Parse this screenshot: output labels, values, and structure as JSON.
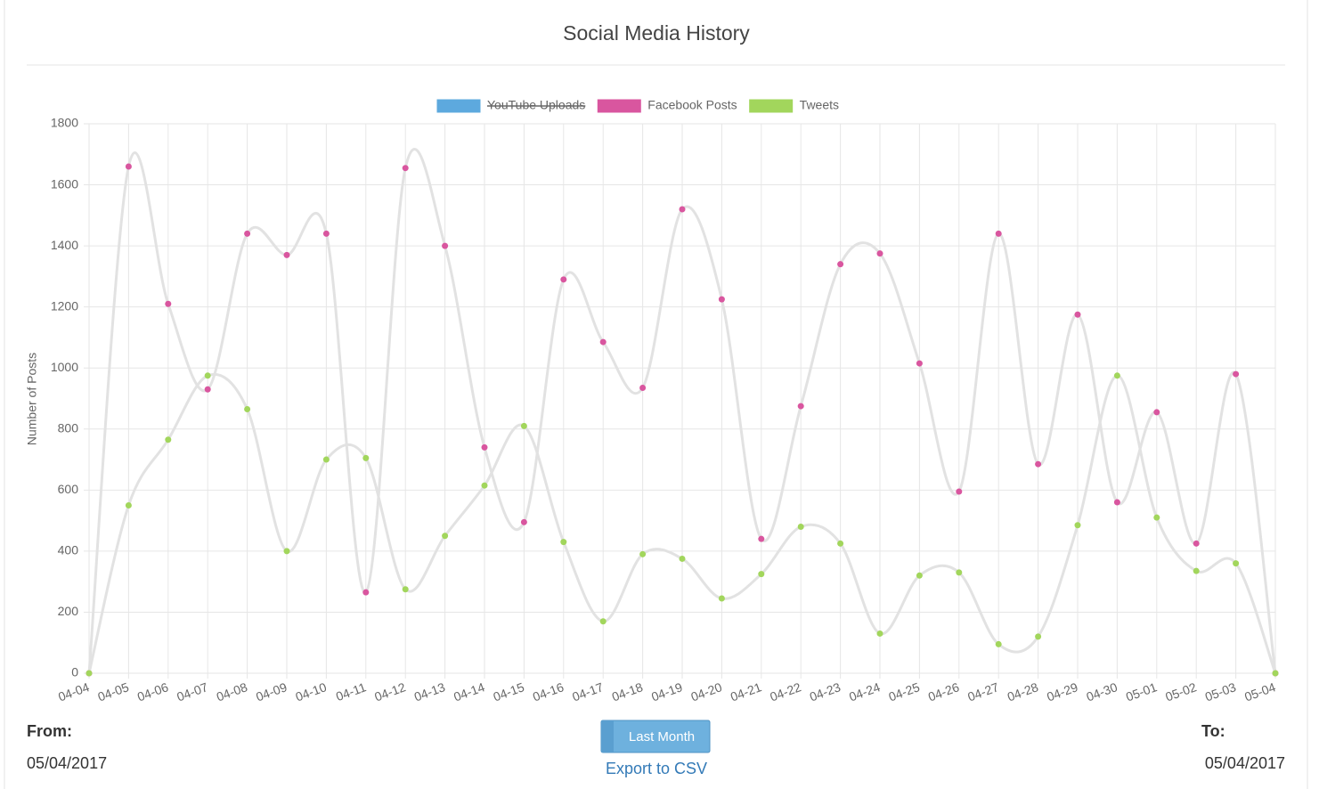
{
  "chart_data": {
    "type": "line",
    "title": "Social Media History",
    "y_label": "Number of Posts",
    "categories": [
      "04-04",
      "04-05",
      "04-06",
      "04-07",
      "04-08",
      "04-09",
      "04-10",
      "04-11",
      "04-12",
      "04-13",
      "04-14",
      "04-15",
      "04-16",
      "04-17",
      "04-18",
      "04-19",
      "04-20",
      "04-21",
      "04-22",
      "04-23",
      "04-24",
      "04-25",
      "04-26",
      "04-27",
      "04-28",
      "04-29",
      "04-30",
      "05-01",
      "05-02",
      "05-03",
      "05-04"
    ],
    "series": [
      {
        "name": "YouTube Uploads",
        "color": "#5da9de",
        "hidden": true
      },
      {
        "name": "Facebook Posts",
        "color": "#d9569f",
        "values": [
          0,
          1660,
          1210,
          930,
          1440,
          1370,
          1440,
          265,
          1655,
          1400,
          740,
          495,
          1290,
          1085,
          935,
          1520,
          1225,
          440,
          875,
          1340,
          1375,
          1015,
          595,
          1440,
          685,
          1175,
          560,
          855,
          425,
          980,
          0
        ]
      },
      {
        "name": "Tweets",
        "color": "#a2d65c",
        "values": [
          0,
          550,
          765,
          975,
          865,
          400,
          700,
          705,
          275,
          450,
          615,
          810,
          430,
          170,
          390,
          375,
          245,
          325,
          480,
          425,
          130,
          320,
          330,
          95,
          120,
          485,
          975,
          510,
          335,
          360,
          0
        ]
      }
    ],
    "line_color": "#e2e2e2",
    "smooth": true,
    "ylim": [
      0,
      1800
    ],
    "yticks": [
      0,
      200,
      400,
      600,
      800,
      1000,
      1200,
      1400,
      1600,
      1800
    ],
    "grid": true,
    "legend": "top"
  },
  "controls": {
    "from_label": "From:",
    "from_date": "05/04/2017",
    "button": "Last Month",
    "export": "Export to CSV",
    "to_label": "To:",
    "to_date": "05/04/2017"
  }
}
